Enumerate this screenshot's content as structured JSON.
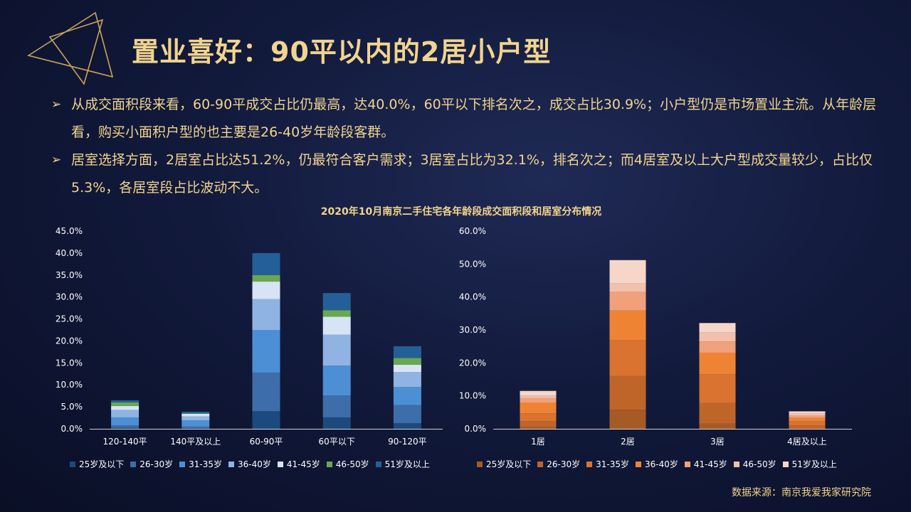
{
  "title": "置业喜好：90平以内的2居小户型",
  "bullets": [
    "从成交面积段来看，60-90平成交占比仍最高，达40.0%，60平以下排名次之，成交占比30.9%；小户型仍是市场置业主流。从年龄层看，购买小面积户型的也主要是26-40岁年龄段客群。",
    "居室选择方面，2居室占比达51.2%，仍最符合客户需求；3居室占比为32.1%，排名次之；而4居室及以上大户型成交量较少，占比仅5.3%，各居室段占比波动不大。"
  ],
  "bullet_arrow": "➢",
  "chart_title": "2020年10月南京二手住宅各年龄段成交面积段和居室分布情况",
  "source": "数据来源：南京我爱我家研究院",
  "chart_data": [
    {
      "type": "bar",
      "stacked": true,
      "categories": [
        "120-140平",
        "140平及以上",
        "60-90平",
        "60平以下",
        "90-120平"
      ],
      "y_ticks": [
        "0.0%",
        "5.0%",
        "10.0%",
        "15.0%",
        "20.0%",
        "25.0%",
        "30.0%",
        "35.0%",
        "40.0%",
        "45.0%"
      ],
      "ylim": [
        0,
        45
      ],
      "legend_position": "bottom",
      "series": [
        {
          "name": "25岁及以下",
          "color": "#1d4a7e",
          "values": [
            0.2,
            0.1,
            4.0,
            2.6,
            1.3
          ]
        },
        {
          "name": "26-30岁",
          "color": "#3e6ea9",
          "values": [
            0.6,
            0.4,
            8.8,
            5.0,
            4.1
          ]
        },
        {
          "name": "31-35岁",
          "color": "#4d8fd4",
          "values": [
            1.8,
            1.4,
            9.7,
            6.8,
            4.1
          ]
        },
        {
          "name": "36-40岁",
          "color": "#8fb4e3",
          "values": [
            1.7,
            0.9,
            7.0,
            7.0,
            3.4
          ]
        },
        {
          "name": "41-45岁",
          "color": "#d6e4f5",
          "values": [
            0.9,
            0.6,
            4.0,
            4.1,
            1.7
          ]
        },
        {
          "name": "46-50岁",
          "color": "#6aa84f",
          "values": [
            0.8,
            0.1,
            1.5,
            1.5,
            1.5
          ]
        },
        {
          "name": "51岁及以上",
          "color": "#245f98",
          "values": [
            0.5,
            0.4,
            5.0,
            3.9,
            2.7
          ]
        }
      ]
    },
    {
      "type": "bar",
      "stacked": true,
      "categories": [
        "1居",
        "2居",
        "3居",
        "4居及以上"
      ],
      "y_ticks": [
        "0.0%",
        "10.0%",
        "20.0%",
        "30.0%",
        "40.0%",
        "50.0%",
        "60.0%"
      ],
      "ylim": [
        0,
        60
      ],
      "legend_position": "bottom",
      "series": [
        {
          "name": "25岁及以下",
          "color": "#a65a25",
          "values": [
            0.5,
            5.8,
            1.6,
            0.1
          ]
        },
        {
          "name": "26-30岁",
          "color": "#c0652a",
          "values": [
            1.8,
            10.2,
            6.2,
            0.9
          ]
        },
        {
          "name": "31-35岁",
          "color": "#d9732f",
          "values": [
            2.4,
            10.9,
            8.8,
            1.3
          ]
        },
        {
          "name": "36-40岁",
          "color": "#ee8433",
          "values": [
            3.2,
            9.0,
            6.5,
            1.0
          ]
        },
        {
          "name": "41-45岁",
          "color": "#f0a07a",
          "values": [
            1.4,
            5.6,
            3.4,
            0.8
          ]
        },
        {
          "name": "46-50岁",
          "color": "#f3c0ab",
          "values": [
            0.8,
            2.6,
            2.7,
            0.5
          ]
        },
        {
          "name": "51岁及以上",
          "color": "#f6d6c8",
          "values": [
            1.4,
            7.1,
            2.9,
            0.7
          ]
        }
      ]
    }
  ]
}
